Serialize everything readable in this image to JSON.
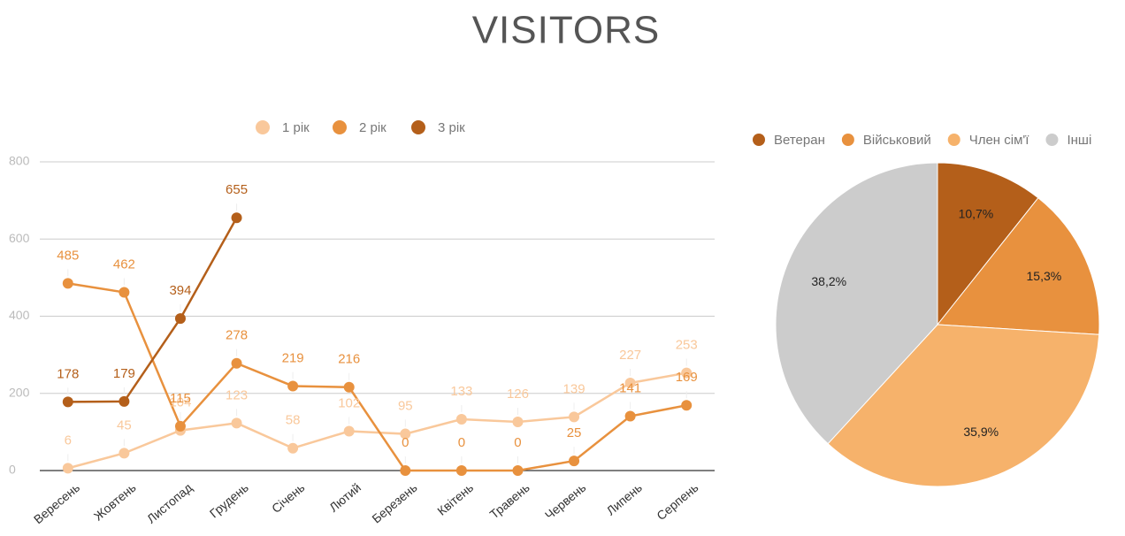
{
  "title": "VISITORS",
  "chart_data": [
    {
      "type": "line",
      "categories": [
        "Вересень",
        "Жовтень",
        "Листопад",
        "Грудень",
        "Січень",
        "Лютий",
        "Березень",
        "Квітень",
        "Травень",
        "Червень",
        "Липень",
        "Серпень"
      ],
      "series": [
        {
          "name": "1 рік",
          "color": "#f9c89b",
          "values": [
            6,
            45,
            104,
            123,
            58,
            102,
            95,
            133,
            126,
            139,
            227,
            253
          ]
        },
        {
          "name": "2 рік",
          "color": "#e8913e",
          "values": [
            485,
            462,
            115,
            278,
            219,
            216,
            0,
            0,
            0,
            25,
            141,
            169
          ]
        },
        {
          "name": "3 рік",
          "color": "#b45f1a",
          "values": [
            178,
            179,
            394,
            655,
            null,
            null,
            null,
            null,
            null,
            null,
            null,
            null
          ]
        }
      ],
      "ylim": [
        0,
        800
      ],
      "yticks": [
        0,
        200,
        400,
        600,
        800
      ],
      "grid": true,
      "legend": "top"
    },
    {
      "type": "pie",
      "categories": [
        "Ветеран",
        "Військовий",
        "Член сім'ї",
        "Інші"
      ],
      "values": [
        10.7,
        15.3,
        35.9,
        38.2
      ],
      "value_labels": [
        "10,7%",
        "15,3%",
        "35,9%",
        "38,2%"
      ],
      "colors": [
        "#b45f1a",
        "#e8913e",
        "#f6b26b",
        "#cccccc"
      ],
      "legend": "top"
    }
  ]
}
